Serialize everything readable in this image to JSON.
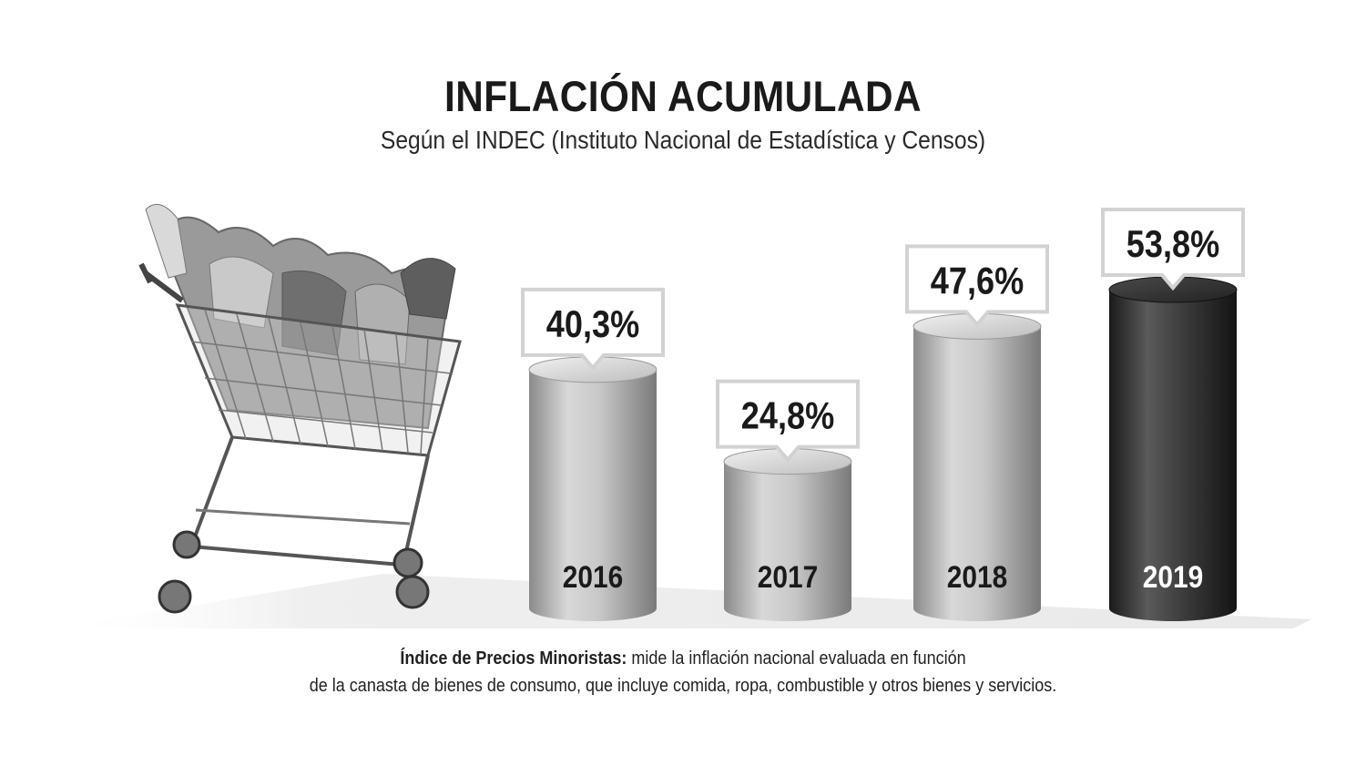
{
  "header": {
    "title": "INFLACIÓN ACUMULADA",
    "subtitle": "Según el INDEC (Instituto Nacional de Estadística y Censos)"
  },
  "chart_data": {
    "type": "bar",
    "style": "3d-cylinder",
    "title": "INFLACIÓN ACUMULADA",
    "subtitle": "Según el INDEC (Instituto Nacional de Estadística y Censos)",
    "categories": [
      "2016",
      "2017",
      "2018",
      "2019"
    ],
    "values": [
      40.3,
      24.8,
      47.6,
      53.8
    ],
    "value_labels": [
      "40,3%",
      "24,8%",
      "47,6%",
      "53,8%"
    ],
    "unit": "%",
    "highlight_index": 3,
    "grid": false,
    "legend": "none",
    "colors": {
      "bar": "#b3b3b3",
      "bar_highlight": "#3a3a3a",
      "label_box_border": "#d2d2d2"
    },
    "decoration": "shopping-cart-illustration"
  },
  "footnote": {
    "bold_part": "Índice de Precios Minoristas:",
    "line1_rest": " mide la inflación nacional evaluada en función",
    "line2": "de la canasta de bienes de consumo, que incluye comida, ropa, combustible y otros bienes y servicios."
  }
}
